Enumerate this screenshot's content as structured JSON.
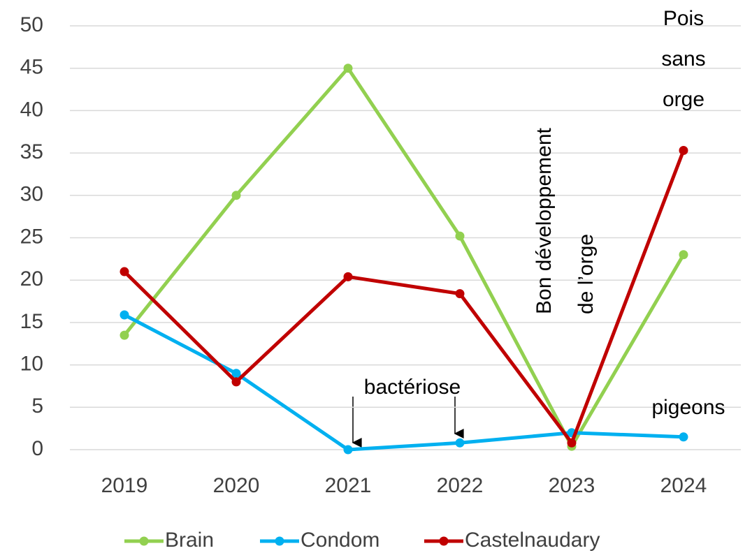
{
  "chart_data": {
    "type": "line",
    "categories": [
      "2019",
      "2020",
      "2021",
      "2022",
      "2023",
      "2024"
    ],
    "series": [
      {
        "name": "Brain",
        "color": "#92d050",
        "values": [
          13.5,
          30,
          45,
          25.2,
          0.4,
          23
        ]
      },
      {
        "name": "Condom",
        "color": "#00b0f0",
        "values": [
          15.9,
          9,
          0,
          0.8,
          2,
          1.5
        ]
      },
      {
        "name": "Castelnaudary",
        "color": "#c00000",
        "values": [
          21,
          8,
          20.4,
          18.4,
          0.8,
          35.3
        ]
      }
    ],
    "ylim": [
      0,
      50
    ],
    "yticks": [
      0,
      5,
      10,
      15,
      20,
      25,
      30,
      35,
      40,
      45,
      50
    ],
    "grid": true,
    "annotations": [
      {
        "lines": [
          "bactériose"
        ]
      },
      {
        "lines": [
          "Bon développement",
          "de l’orge"
        ]
      },
      {
        "lines": [
          "Pois",
          "sans",
          "orge"
        ]
      },
      {
        "lines": [
          "pigeons"
        ]
      }
    ]
  }
}
